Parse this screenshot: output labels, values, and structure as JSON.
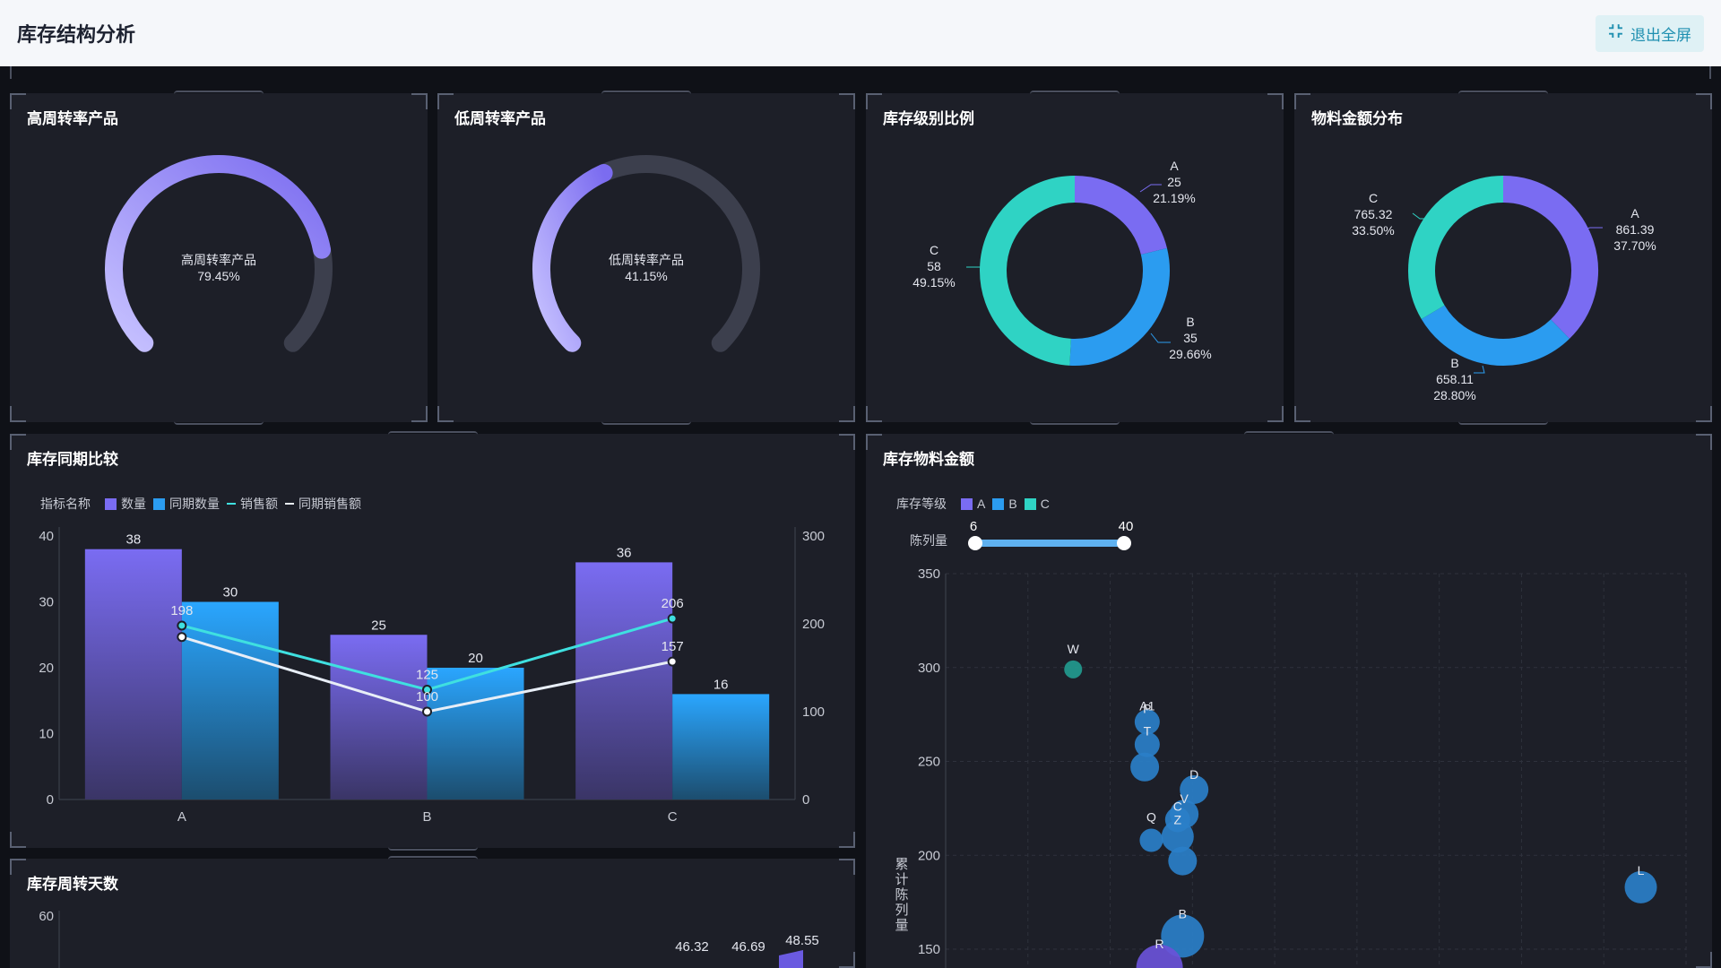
{
  "header": {
    "title": "库存结构分析",
    "exit_label": "退出全屏"
  },
  "gauges": [
    {
      "panel_title": "高周转率产品",
      "center_label": "高周转率产品",
      "value_text": "79.45%",
      "value": 0.7945
    },
    {
      "panel_title": "低周转率产品",
      "center_label": "低周转率产品",
      "value_text": "41.15%",
      "value": 0.4115
    }
  ],
  "donuts": [
    {
      "panel_title": "库存级别比例",
      "slices": [
        {
          "name": "A",
          "value": "25",
          "pct": "21.19%",
          "frac": 0.2119,
          "color": "#7a6cf2"
        },
        {
          "name": "B",
          "value": "35",
          "pct": "29.66%",
          "frac": 0.2966,
          "color": "#2b9cf0"
        },
        {
          "name": "C",
          "value": "58",
          "pct": "49.15%",
          "frac": 0.4915,
          "color": "#2fd3c4"
        }
      ]
    },
    {
      "panel_title": "物料金额分布",
      "slices": [
        {
          "name": "A",
          "value": "861.39",
          "pct": "37.70%",
          "frac": 0.377,
          "color": "#7a6cf2"
        },
        {
          "name": "B",
          "value": "658.11",
          "pct": "28.80%",
          "frac": 0.288,
          "color": "#2b9cf0"
        },
        {
          "name": "C",
          "value": "765.32",
          "pct": "33.50%",
          "frac": 0.335,
          "color": "#2fd3c4"
        }
      ]
    }
  ],
  "compare": {
    "panel_title": "库存同期比较",
    "legend_title": "指标名称",
    "legend": [
      "数量",
      "同期数量",
      "销售额",
      "同期销售额"
    ],
    "colors": {
      "qty": "#7a6cf2",
      "prev_qty": "#2b9cf0",
      "sales": "#3fe0e0",
      "prev_sales": "#e8eef7"
    }
  },
  "scatter_meta": {
    "panel_title": "库存物料金额",
    "legend_title": "库存等级",
    "legend": [
      "A",
      "B",
      "C"
    ],
    "legend_colors": [
      "#7a6cf2",
      "#2b9cf0",
      "#2fd3c4"
    ],
    "slider_label": "陈列量",
    "slider_min": "6",
    "slider_max": "40",
    "yaxis_label": "累计陈列量"
  },
  "turnover": {
    "panel_title": "库存周转天数",
    "y_tick": "60",
    "labels": [
      "46.32",
      "46.69",
      "48.55"
    ]
  },
  "chart_data": [
    {
      "type": "bar",
      "title": "库存同期比较",
      "categories": [
        "A",
        "B",
        "C"
      ],
      "series": [
        {
          "name": "数量",
          "kind": "bar",
          "axis": "left",
          "values": [
            38,
            25,
            36
          ]
        },
        {
          "name": "同期数量",
          "kind": "bar",
          "axis": "left",
          "values": [
            30,
            20,
            16
          ]
        },
        {
          "name": "销售额",
          "kind": "line",
          "axis": "right",
          "values": [
            198,
            125,
            206
          ]
        },
        {
          "name": "同期销售额",
          "kind": "line",
          "axis": "right",
          "values": [
            185,
            100,
            157
          ]
        }
      ],
      "ylim_left": [
        0,
        40
      ],
      "yticks_left": [
        0,
        10,
        20,
        30,
        40
      ],
      "ylim_right": [
        0,
        300
      ],
      "yticks_right": [
        0,
        100,
        200,
        300
      ],
      "line_labels": {
        "销售额": [
          "198",
          "125",
          "206"
        ],
        "同期销售额": [
          "",
          "100",
          "157"
        ]
      },
      "grid": false,
      "legend": "top-left"
    },
    {
      "type": "scatter",
      "title": "库存物料金额",
      "ylabel": "累计陈列量",
      "xlim": [
        0,
        9
      ],
      "ylim": [
        140,
        350
      ],
      "yticks": [
        150,
        200,
        250,
        300,
        350
      ],
      "points": [
        {
          "label": "W",
          "x": 1.55,
          "y": 299,
          "r": 10,
          "level": "C"
        },
        {
          "label": "P",
          "x": 2.45,
          "y": 271,
          "r": 14,
          "level": "B"
        },
        {
          "label": "T",
          "x": 2.45,
          "y": 259,
          "r": 14,
          "level": "B"
        },
        {
          "label": "",
          "x": 2.42,
          "y": 247,
          "r": 16,
          "level": "B"
        },
        {
          "label": "Q",
          "x": 2.5,
          "y": 208,
          "r": 13,
          "level": "B"
        },
        {
          "label": "D",
          "x": 3.02,
          "y": 235,
          "r": 16,
          "level": "B"
        },
        {
          "label": "V",
          "x": 2.9,
          "y": 222,
          "r": 16,
          "level": "B"
        },
        {
          "label": "C",
          "x": 2.82,
          "y": 219,
          "r": 14,
          "level": "B"
        },
        {
          "label": "Z",
          "x": 2.82,
          "y": 210,
          "r": 18,
          "level": "B"
        },
        {
          "label": "",
          "x": 2.88,
          "y": 197,
          "r": 16,
          "level": "B"
        },
        {
          "label": "B",
          "x": 2.88,
          "y": 157,
          "r": 24,
          "level": "B"
        },
        {
          "label": "R",
          "x": 2.6,
          "y": 140,
          "r": 26,
          "level": "A"
        },
        {
          "label": "L",
          "x": 8.45,
          "y": 183,
          "r": 18,
          "level": "B"
        }
      ],
      "point_label_extra": {
        "A1": {
          "x": 2.45,
          "y": 281
        }
      },
      "grid": true
    }
  ]
}
